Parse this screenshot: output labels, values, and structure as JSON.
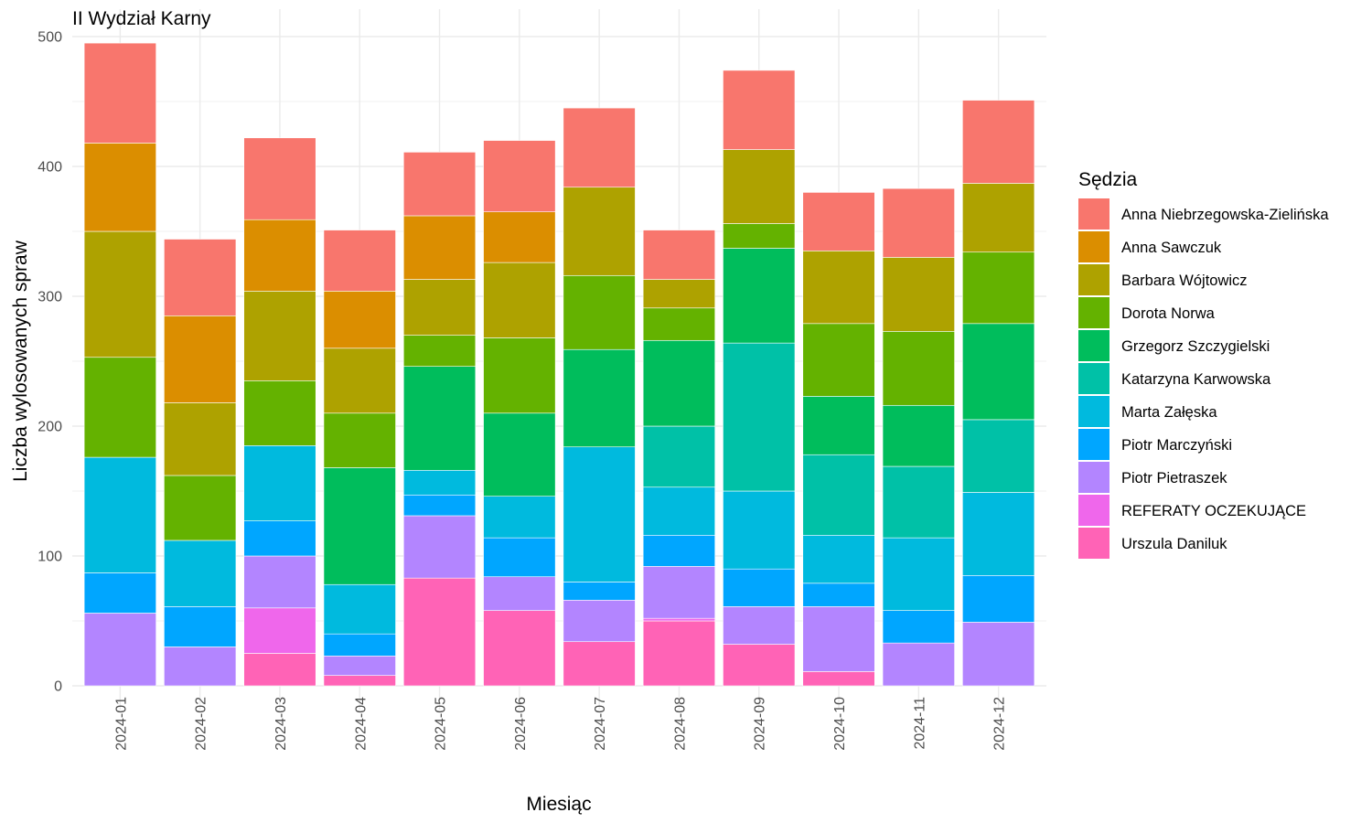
{
  "chart_data": {
    "type": "bar",
    "stacked": true,
    "title": "II Wydział Karny",
    "xlabel": "Miesiąc",
    "ylabel": "Liczba wylosowanych spraw",
    "ylim": [
      0,
      520
    ],
    "yticks": [
      0,
      100,
      200,
      300,
      400,
      500
    ],
    "grid": true,
    "legend_title": "Sędzia",
    "legend_position": "right",
    "categories": [
      "2024-01",
      "2024-02",
      "2024-03",
      "2024-04",
      "2024-05",
      "2024-06",
      "2024-07",
      "2024-08",
      "2024-09",
      "2024-10",
      "2024-11",
      "2024-12"
    ],
    "series": [
      {
        "name": "Anna Niebrzegowska-Zielińska",
        "color": "#F8766D",
        "values": [
          77,
          59,
          63,
          47,
          49,
          55,
          61,
          38,
          61,
          45,
          53,
          64
        ]
      },
      {
        "name": "Anna Sawczuk",
        "color": "#DB8E00",
        "values": [
          68,
          67,
          55,
          44,
          49,
          39,
          0,
          0,
          0,
          0,
          0,
          0
        ]
      },
      {
        "name": "Barbara Wójtowicz",
        "color": "#AEA200",
        "values": [
          97,
          56,
          69,
          50,
          43,
          58,
          68,
          22,
          57,
          56,
          57,
          53
        ]
      },
      {
        "name": "Dorota Norwa",
        "color": "#64B200",
        "values": [
          77,
          50,
          50,
          42,
          24,
          58,
          57,
          25,
          19,
          56,
          57,
          55
        ]
      },
      {
        "name": "Grzegorz Szczygielski",
        "color": "#00BD5C",
        "values": [
          0,
          0,
          0,
          90,
          80,
          64,
          75,
          66,
          73,
          45,
          47,
          74
        ]
      },
      {
        "name": "Katarzyna Karwowska",
        "color": "#00C1A7",
        "values": [
          0,
          0,
          0,
          0,
          0,
          0,
          0,
          47,
          114,
          62,
          55,
          56
        ]
      },
      {
        "name": "Marta Załęska",
        "color": "#00BADE",
        "values": [
          89,
          51,
          58,
          38,
          19,
          32,
          104,
          37,
          60,
          37,
          56,
          64
        ]
      },
      {
        "name": "Piotr Marczyński",
        "color": "#00A6FF",
        "values": [
          31,
          31,
          27,
          17,
          16,
          30,
          14,
          24,
          29,
          18,
          25,
          36
        ]
      },
      {
        "name": "Piotr Pietraszek",
        "color": "#B385FF",
        "values": [
          56,
          30,
          40,
          15,
          48,
          26,
          32,
          40,
          29,
          50,
          33,
          49
        ]
      },
      {
        "name": "REFERATY OCZEKUJĄCE",
        "color": "#EF67EB",
        "values": [
          0,
          0,
          35,
          0,
          0,
          0,
          0,
          2,
          0,
          0,
          0,
          0
        ]
      },
      {
        "name": "Urszula Daniluk",
        "color": "#FF63B6",
        "values": [
          0,
          0,
          25,
          8,
          83,
          58,
          34,
          50,
          32,
          11,
          0,
          0
        ]
      }
    ]
  }
}
